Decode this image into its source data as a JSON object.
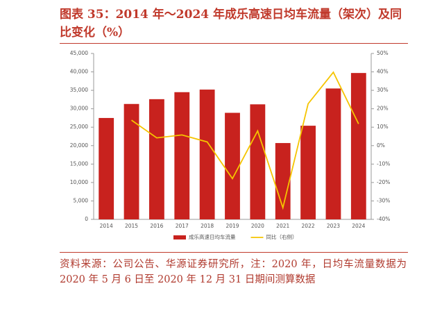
{
  "chart_data": {
    "type": "bar_line",
    "title": "图表 35：2014 年～2024 年成乐高速日均车流量（架次）及同比变化（%）",
    "source": "资料来源：公司公告、华源证券研究所，注：2020 年，日均车流量数据为 2020 年 5 月 6 日至 2020 年 12 月 31 日期间测算数据",
    "categories": [
      "2014",
      "2015",
      "2016",
      "2017",
      "2018",
      "2019",
      "2020",
      "2021",
      "2022",
      "2023",
      "2024"
    ],
    "series": [
      {
        "name": "成乐高速日均车流量",
        "color": "#c8221e",
        "values": [
          27500,
          31300,
          32600,
          34500,
          35200,
          28900,
          31200,
          20700,
          25400,
          35500,
          39700
        ]
      },
      {
        "name": "同比（右侧）",
        "color": "#f5c400",
        "axis": "y2",
        "values": [
          null,
          13.8,
          4.2,
          5.8,
          2.0,
          -17.9,
          8.0,
          -33.7,
          22.7,
          39.8,
          11.8
        ]
      }
    ],
    "ylim": [
      0,
      45000
    ],
    "yticks": [
      0,
      {
        "value": 5000,
        "label": "5,000"
      },
      {
        "value": 10000,
        "label": "10,000"
      },
      {
        "value": 15000,
        "label": "15,000"
      },
      {
        "value": 20000,
        "label": "20,000"
      },
      {
        "value": 25000,
        "label": "25,000"
      },
      {
        "value": 30000,
        "label": "30,000"
      },
      {
        "value": 35000,
        "label": "35,000"
      },
      {
        "value": 40000,
        "label": "40,000"
      },
      {
        "value": 45000,
        "label": "45,000"
      }
    ],
    "y2lim": [
      -40,
      50
    ],
    "y2ticks": [
      {
        "value": -40,
        "label": "-40%"
      },
      {
        "value": -30,
        "label": "-30%"
      },
      {
        "value": -20,
        "label": "-20%"
      },
      {
        "value": -10,
        "label": "-10%"
      },
      {
        "value": 0,
        "label": "0%"
      },
      {
        "value": 10,
        "label": "10%"
      },
      {
        "value": 20,
        "label": "20%"
      },
      {
        "value": 30,
        "label": "30%"
      },
      {
        "value": 40,
        "label": "40%"
      },
      {
        "value": 50,
        "label": "50%"
      }
    ]
  }
}
